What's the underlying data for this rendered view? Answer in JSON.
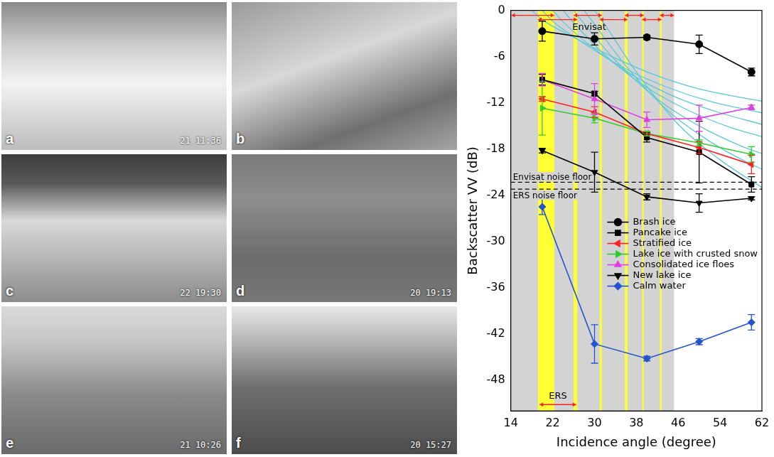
{
  "photos": [
    {
      "label": "a",
      "timestamp": "21 11:36"
    },
    {
      "label": "b"
    },
    {
      "label": "c",
      "timestamp": "22 19:30"
    },
    {
      "label": "d",
      "timestamp": "20 19:13"
    },
    {
      "label": "e",
      "timestamp": "21 10:26"
    },
    {
      "label": "f",
      "timestamp": "20 15:27"
    }
  ],
  "chart_data": {
    "type": "line",
    "x_label": "Incidence angle (degree)",
    "y_label": "Backscatter VV (dB)",
    "xlim": [
      14,
      62
    ],
    "xticks": [
      14,
      22,
      30,
      38,
      46,
      54,
      62
    ],
    "ylim": [
      -52,
      0
    ],
    "yticks": [
      0,
      -6,
      -12,
      -18,
      -24,
      -30,
      -36,
      -42,
      -48
    ],
    "grid": false,
    "legend": "lower right",
    "x": [
      20,
      30,
      40,
      50,
      60
    ],
    "series": [
      {
        "name": "Brash ice",
        "color": "#000000",
        "marker": "circle",
        "values": [
          -2.7,
          -3.7,
          -3.5,
          -4.4,
          -8.0
        ],
        "errors": [
          1.3,
          0.8,
          0.3,
          1.2,
          0.5
        ]
      },
      {
        "name": "Pancake ice",
        "color": "#000000",
        "marker": "square",
        "values": [
          -9.0,
          -10.8,
          -16.5,
          -18.4,
          -22.6
        ],
        "errors": [
          0.7,
          0.3,
          0.6,
          4.0,
          1.0
        ]
      },
      {
        "name": "Stratified ice",
        "color": "#ff2020",
        "marker": "triangle-left",
        "values": [
          -11.5,
          -13.2,
          -16.0,
          -17.8,
          -20.0
        ],
        "errors": [
          0.3,
          0.7,
          0.3,
          0.8,
          1.2
        ]
      },
      {
        "name": "Lake ice with crusted snow",
        "color": "#33cc33",
        "marker": "triangle-right",
        "values": [
          -12.7,
          -14.0,
          -16.0,
          -17.2,
          -18.7
        ],
        "errors": [
          3.5,
          0.6,
          0.3,
          0.4,
          1.0
        ]
      },
      {
        "name": "Consolidated ice floes",
        "color": "#e040e0",
        "marker": "triangle-up",
        "values": [
          -9.0,
          -11.5,
          -14.2,
          -14.0,
          -12.6
        ],
        "errors": [
          0.8,
          2.0,
          1.0,
          1.7,
          0.3
        ]
      },
      {
        "name": "New lake ice",
        "color": "#000000",
        "marker": "triangle-down",
        "values": [
          -18.2,
          -21.0,
          -24.2,
          -25.0,
          -24.4
        ],
        "errors": [
          0.3,
          2.6,
          0.4,
          1.2,
          0.2
        ]
      },
      {
        "name": "Calm water",
        "color": "#2255cc",
        "marker": "diamond",
        "values": [
          -25.5,
          -43.3,
          -45.2,
          -43.0,
          -40.5
        ],
        "errors": [
          1.0,
          2.5,
          0.3,
          0.4,
          1.0
        ]
      }
    ],
    "model_curves": [
      {
        "color": "#5bc8d8",
        "x": [
          18,
          20,
          26,
          34,
          42,
          50,
          62
        ],
        "values": [
          0,
          -1.2,
          -3.5,
          -6.2,
          -8.5,
          -10.2,
          -11.8
        ]
      },
      {
        "color": "#5bc8d8",
        "x": [
          20,
          22,
          28,
          36,
          44,
          52,
          62
        ],
        "values": [
          0,
          -1.4,
          -4.3,
          -7.6,
          -10.0,
          -11.8,
          -13.3
        ]
      },
      {
        "color": "#5bc8d8",
        "x": [
          22,
          24,
          30,
          38,
          46,
          54,
          62
        ],
        "values": [
          0,
          -1.5,
          -5.0,
          -8.7,
          -11.4,
          -13.3,
          -14.8
        ]
      },
      {
        "color": "#5bc8d8",
        "x": [
          24,
          26,
          32,
          40,
          48,
          56,
          62
        ],
        "values": [
          0,
          -1.6,
          -5.8,
          -10.0,
          -13.0,
          -15.2,
          -16.4
        ]
      },
      {
        "color": "#5bc8d8",
        "x": [
          26,
          28,
          34,
          42,
          50,
          58,
          62
        ],
        "values": [
          0,
          -1.7,
          -6.5,
          -11.5,
          -15.0,
          -17.6,
          -18.6
        ]
      },
      {
        "color": "#5bc8d8",
        "x": [
          28,
          30,
          36,
          44,
          52,
          60,
          62
        ],
        "values": [
          0,
          -1.8,
          -7.2,
          -13.0,
          -17.0,
          -20.0,
          -20.6
        ]
      },
      {
        "color": "#5bc8d8",
        "x": [
          30,
          32,
          38,
          46,
          54,
          62
        ],
        "values": [
          0,
          -1.9,
          -8.0,
          -14.8,
          -19.4,
          -23.0
        ]
      }
    ],
    "noise_floors": [
      {
        "label": "Envisat noise floor",
        "value": -22.3
      },
      {
        "label": "ERS noise floor",
        "value": -23.2
      }
    ],
    "envisat": {
      "label": "Envisat",
      "color": "#ff2020",
      "swaths": [
        [
          14.1,
          22.3
        ],
        [
          19.2,
          26.7
        ],
        [
          26.0,
          31.4
        ],
        [
          31.0,
          36.3
        ],
        [
          35.8,
          39.4
        ],
        [
          39.1,
          42.8
        ],
        [
          42.5,
          45.2
        ]
      ]
    },
    "ers": {
      "label": "ERS",
      "color": "#ff2020",
      "swath": [
        19.5,
        26.5
      ]
    },
    "coverage": [
      14.1,
      45.2
    ],
    "overlaps": [
      [
        19.2,
        22.3
      ],
      [
        26.0,
        26.7
      ],
      [
        31.0,
        31.4
      ],
      [
        35.8,
        36.3
      ],
      [
        39.1,
        39.4
      ],
      [
        42.5,
        42.8
      ]
    ]
  }
}
